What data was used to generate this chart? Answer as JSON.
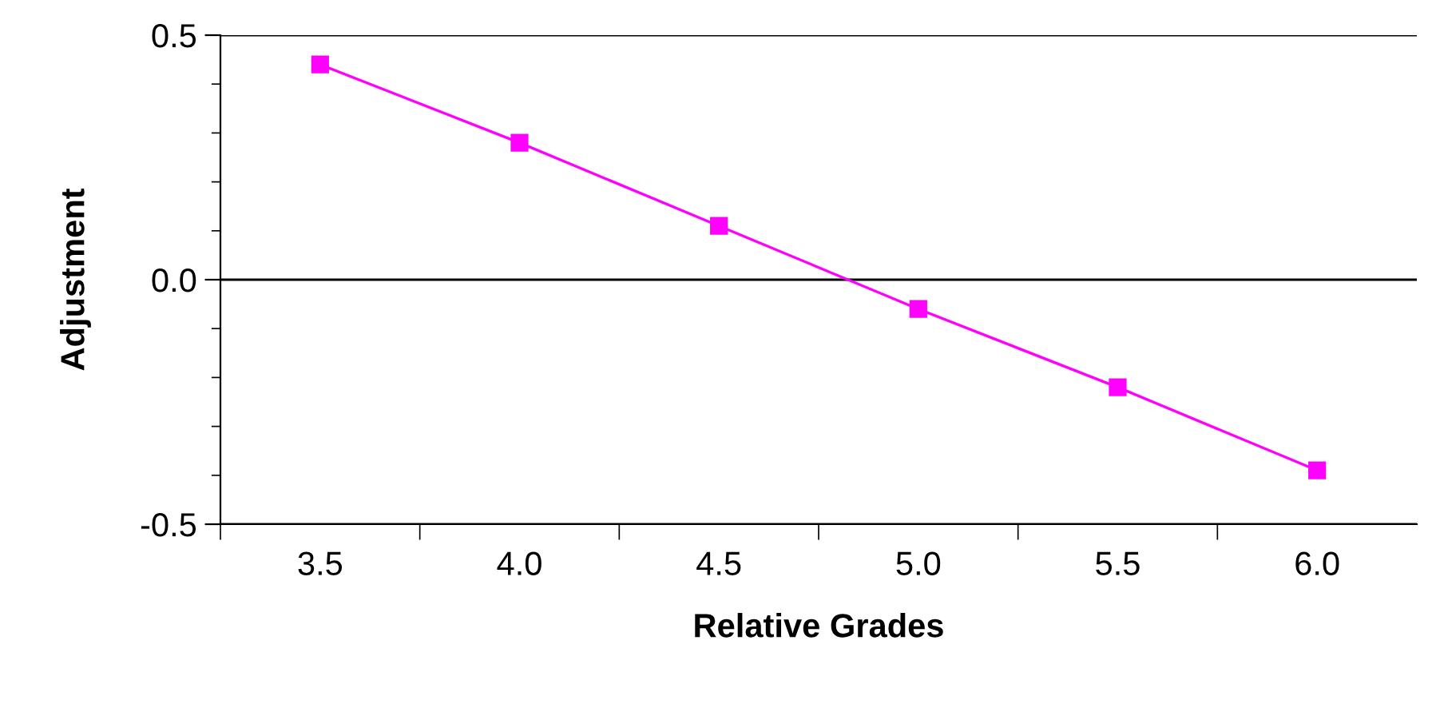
{
  "chart_data": {
    "type": "line",
    "xlabel": "Relative Grades",
    "ylabel": "Adjustment",
    "categories": [
      "3.5",
      "4.0",
      "4.5",
      "5.0",
      "5.5",
      "6.0"
    ],
    "series": [
      {
        "color": "#ff00ff",
        "values": [
          0.44,
          0.28,
          0.11,
          -0.06,
          -0.22,
          -0.39
        ]
      }
    ],
    "ylim": [
      -0.5,
      0.5
    ],
    "yticks": [
      {
        "value": -0.5,
        "label": "-0.5"
      },
      {
        "value": -0.4,
        "label": null
      },
      {
        "value": -0.3,
        "label": null
      },
      {
        "value": -0.2,
        "label": null
      },
      {
        "value": -0.1,
        "label": null
      },
      {
        "value": 0.0,
        "label": "0.0"
      },
      {
        "value": 0.1,
        "label": null
      },
      {
        "value": 0.2,
        "label": null
      },
      {
        "value": 0.3,
        "label": null
      },
      {
        "value": 0.4,
        "label": null
      },
      {
        "value": 0.5,
        "label": "0.5"
      }
    ],
    "grid": "y",
    "marker": "square",
    "line_style": "solid"
  }
}
